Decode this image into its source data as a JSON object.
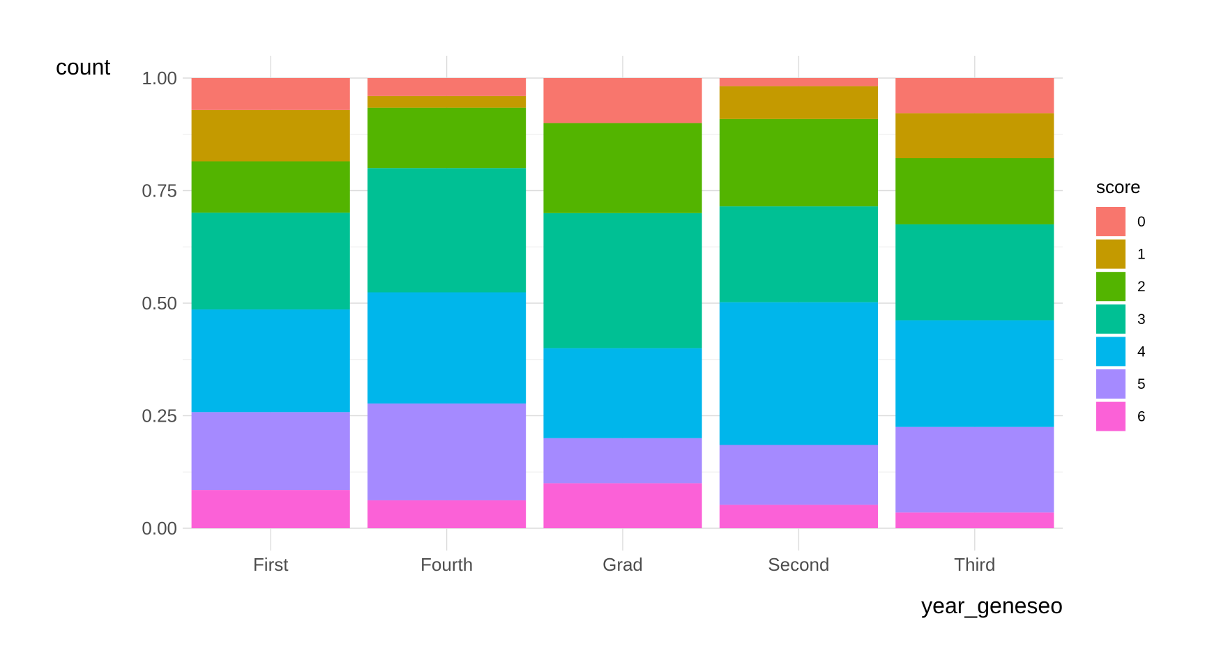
{
  "chart_data": {
    "type": "bar",
    "stacking": "fill",
    "title": "",
    "xlabel": "year_geneseo",
    "ylabel": "count",
    "ylim": [
      0,
      1
    ],
    "yticks": [
      "0.00",
      "0.25",
      "0.50",
      "0.75",
      "1.00"
    ],
    "ytick_values": [
      0,
      0.25,
      0.5,
      0.75,
      1
    ],
    "grid": true,
    "legend": {
      "title": "score",
      "position": "right"
    },
    "categories": [
      "First",
      "Fourth",
      "Grad",
      "Second",
      "Third"
    ],
    "series": [
      {
        "name": "6",
        "color": "#FB61D7",
        "values": [
          0.085,
          0.062,
          0.1,
          0.052,
          0.035
        ]
      },
      {
        "name": "5",
        "color": "#A58AFF",
        "values": [
          0.173,
          0.215,
          0.1,
          0.133,
          0.19
        ]
      },
      {
        "name": "4",
        "color": "#00B6EB",
        "values": [
          0.228,
          0.247,
          0.2,
          0.317,
          0.237
        ]
      },
      {
        "name": "3",
        "color": "#00C094",
        "values": [
          0.215,
          0.276,
          0.3,
          0.213,
          0.213
        ]
      },
      {
        "name": "2",
        "color": "#53B400",
        "values": [
          0.114,
          0.134,
          0.2,
          0.194,
          0.147
        ]
      },
      {
        "name": "1",
        "color": "#C49A00",
        "values": [
          0.114,
          0.026,
          0.0,
          0.073,
          0.1
        ]
      },
      {
        "name": "0",
        "color": "#F8766D",
        "values": [
          0.071,
          0.04,
          0.1,
          0.018,
          0.078
        ]
      }
    ]
  }
}
